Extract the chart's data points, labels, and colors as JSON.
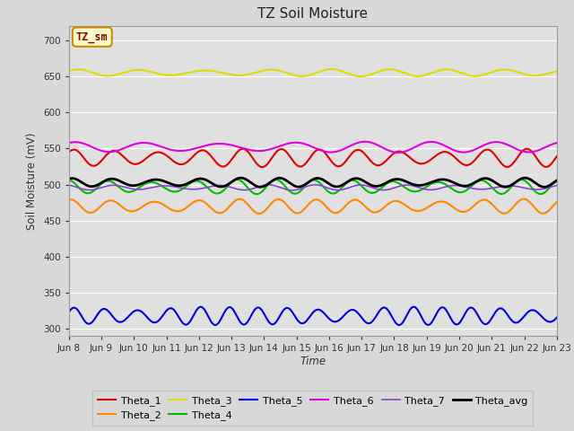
{
  "title": "TZ Soil Moisture",
  "xlabel": "Time",
  "ylabel": "Soil Moisture (mV)",
  "ylim": [
    290,
    720
  ],
  "yticks": [
    300,
    350,
    400,
    450,
    500,
    550,
    600,
    650,
    700
  ],
  "fig_bg_color": "#d8d8d8",
  "plot_bg_color": "#e0e0e0",
  "n_points": 500,
  "x_start": 8,
  "x_end": 23,
  "series": [
    {
      "name": "Theta_1",
      "color": "#dd0000",
      "base": 537,
      "amp": 10,
      "freq": 12,
      "phase": 0.3,
      "lw": 1.5
    },
    {
      "name": "Theta_2",
      "color": "#ff8800",
      "base": 470,
      "amp": 8,
      "freq": 12,
      "phase": 0.8,
      "lw": 1.5
    },
    {
      "name": "Theta_3",
      "color": "#dddd00",
      "base": 655,
      "amp": 4,
      "freq": 8,
      "phase": 0.1,
      "lw": 1.5
    },
    {
      "name": "Theta_4",
      "color": "#00bb00",
      "base": 497,
      "amp": 8,
      "freq": 12,
      "phase": 1.2,
      "lw": 1.5
    },
    {
      "name": "Theta_5",
      "color": "#0000dd",
      "base": 318,
      "amp": 10,
      "freq": 16,
      "phase": 0.0,
      "lw": 1.5
    },
    {
      "name": "Theta_6",
      "color": "#dd00dd",
      "base": 552,
      "amp": 6,
      "freq": 7,
      "phase": 0.5,
      "lw": 1.5
    },
    {
      "name": "Theta_7",
      "color": "#8844cc",
      "base": 496,
      "amp": 3,
      "freq": 10,
      "phase": 1.5,
      "lw": 1.2
    },
    {
      "name": "Theta_avg",
      "color": "#000000",
      "base": 503,
      "amp": 5,
      "freq": 12,
      "phase": 0.6,
      "lw": 2.0
    }
  ],
  "xtick_labels": [
    "Jun 8",
    "Jun 9",
    "Jun 10",
    "Jun 11",
    "Jun 12",
    "Jun 13",
    "Jun 14",
    "Jun 15",
    "Jun 16",
    "Jun 17",
    "Jun 18",
    "Jun 19",
    "Jun 20",
    "Jun 21",
    "Jun 22",
    "Jun 23"
  ],
  "xtick_positions": [
    8,
    9,
    10,
    11,
    12,
    13,
    14,
    15,
    16,
    17,
    18,
    19,
    20,
    21,
    22,
    23
  ],
  "legend_box_facecolor": "#ffffcc",
  "legend_box_edgecolor": "#cc8800",
  "legend_text": "TZ_sm",
  "legend_text_color": "#880000"
}
